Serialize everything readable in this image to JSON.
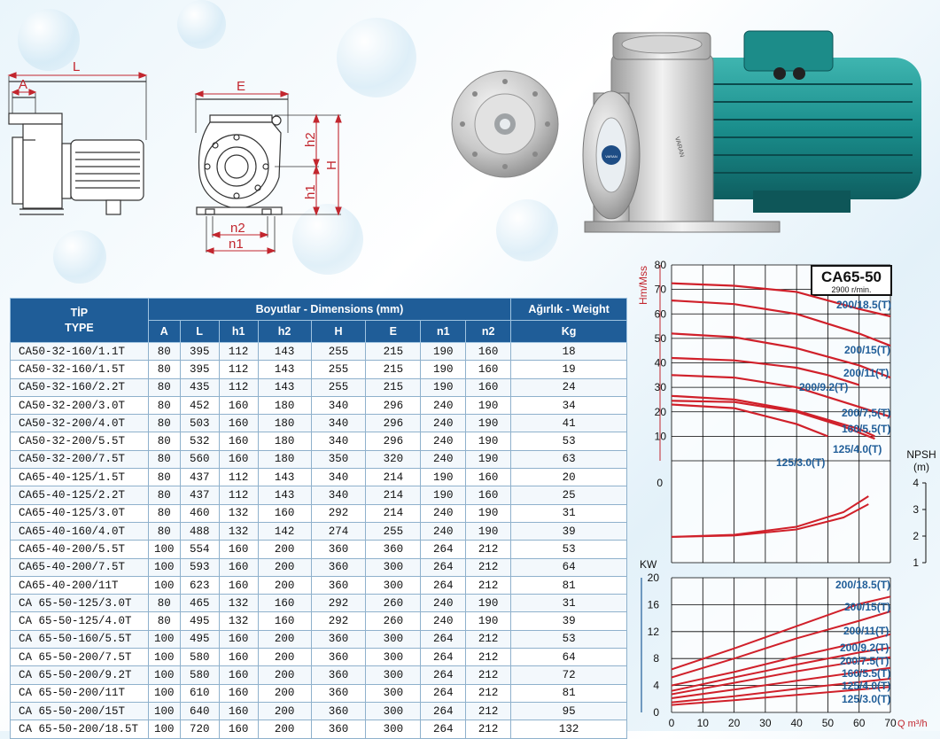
{
  "drawing_labels": {
    "L": "L",
    "A": "A",
    "E": "E",
    "h2": "h2",
    "H": "H",
    "h1": "h1",
    "n2": "n2",
    "n1": "n1"
  },
  "photo": {
    "brand_badge": "VARAN",
    "impeller_brand": "VARAN"
  },
  "table": {
    "header": {
      "type_tr": "TİP",
      "type_en": "TYPE",
      "dims": "Boyutlar - Dimensions (mm)",
      "weight": "Ağırlık - Weight",
      "cols": [
        "A",
        "L",
        "h1",
        "h2",
        "H",
        "E",
        "n1",
        "n2"
      ],
      "unit": "Kg"
    },
    "rows": [
      [
        "CA50-32-160/1.1T",
        "80",
        "395",
        "112",
        "143",
        "255",
        "215",
        "190",
        "160",
        "18"
      ],
      [
        "CA50-32-160/1.5T",
        "80",
        "395",
        "112",
        "143",
        "255",
        "215",
        "190",
        "160",
        "19"
      ],
      [
        "CA50-32-160/2.2T",
        "80",
        "435",
        "112",
        "143",
        "255",
        "215",
        "190",
        "160",
        "24"
      ],
      [
        "CA50-32-200/3.0T",
        "80",
        "452",
        "160",
        "180",
        "340",
        "296",
        "240",
        "190",
        "34"
      ],
      [
        "CA50-32-200/4.0T",
        "80",
        "503",
        "160",
        "180",
        "340",
        "296",
        "240",
        "190",
        "41"
      ],
      [
        "CA50-32-200/5.5T",
        "80",
        "532",
        "160",
        "180",
        "340",
        "296",
        "240",
        "190",
        "53"
      ],
      [
        "CA50-32-200/7.5T",
        "80",
        "560",
        "160",
        "180",
        "350",
        "320",
        "240",
        "190",
        "63"
      ],
      [
        "CA65-40-125/1.5T",
        "80",
        "437",
        "112",
        "143",
        "340",
        "214",
        "190",
        "160",
        "20"
      ],
      [
        "CA65-40-125/2.2T",
        "80",
        "437",
        "112",
        "143",
        "340",
        "214",
        "190",
        "160",
        "25"
      ],
      [
        "CA65-40-125/3.0T",
        "80",
        "460",
        "132",
        "160",
        "292",
        "214",
        "240",
        "190",
        "31"
      ],
      [
        "CA65-40-160/4.0T",
        "80",
        "488",
        "132",
        "142",
        "274",
        "255",
        "240",
        "190",
        "39"
      ],
      [
        "CA65-40-200/5.5T",
        "100",
        "554",
        "160",
        "200",
        "360",
        "360",
        "264",
        "212",
        "53"
      ],
      [
        "CA65-40-200/7.5T",
        "100",
        "593",
        "160",
        "200",
        "360",
        "300",
        "264",
        "212",
        "64"
      ],
      [
        "CA65-40-200/11T",
        "100",
        "623",
        "160",
        "200",
        "360",
        "300",
        "264",
        "212",
        "81"
      ],
      [
        "CA 65-50-125/3.0T",
        "80",
        "465",
        "132",
        "160",
        "292",
        "260",
        "240",
        "190",
        "31"
      ],
      [
        "CA 65-50-125/4.0T",
        "80",
        "495",
        "132",
        "160",
        "292",
        "260",
        "240",
        "190",
        "39"
      ],
      [
        "CA 65-50-160/5.5T",
        "100",
        "495",
        "160",
        "200",
        "360",
        "300",
        "264",
        "212",
        "53"
      ],
      [
        "CA 65-50-200/7.5T",
        "100",
        "580",
        "160",
        "200",
        "360",
        "300",
        "264",
        "212",
        "64"
      ],
      [
        "CA 65-50-200/9.2T",
        "100",
        "580",
        "160",
        "200",
        "360",
        "300",
        "264",
        "212",
        "72"
      ],
      [
        "CA 65-50-200/11T",
        "100",
        "610",
        "160",
        "200",
        "360",
        "300",
        "264",
        "212",
        "81"
      ],
      [
        "CA 65-50-200/15T",
        "100",
        "640",
        "160",
        "200",
        "360",
        "300",
        "264",
        "212",
        "95"
      ],
      [
        "CA 65-50-200/18.5T",
        "100",
        "720",
        "160",
        "200",
        "360",
        "300",
        "264",
        "212",
        "132"
      ]
    ]
  },
  "chart_data": {
    "type": "line",
    "title": "CA65-50",
    "subtitle": "2900 r/min.",
    "x_unit": "Q m³/h",
    "x": [
      0,
      10,
      20,
      30,
      40,
      50,
      60,
      70
    ],
    "head": {
      "ylabel": "Hm/Mss",
      "ylim": [
        0,
        80
      ],
      "yticks": [
        10,
        20,
        30,
        40,
        50,
        60,
        70,
        80
      ],
      "series": [
        {
          "name": "200/18.5(T)",
          "points": [
            [
              0,
              72.5
            ],
            [
              20,
              71.5
            ],
            [
              40,
              69
            ],
            [
              60,
              62
            ],
            [
              70,
              59
            ]
          ]
        },
        {
          "name": "200/15(T)",
          "points": [
            [
              0,
              65.5
            ],
            [
              20,
              64
            ],
            [
              40,
              60
            ],
            [
              60,
              52
            ],
            [
              70,
              47
            ]
          ]
        },
        {
          "name": "200/11(T)",
          "points": [
            [
              0,
              52
            ],
            [
              20,
              50.5
            ],
            [
              40,
              46
            ],
            [
              60,
              39
            ],
            [
              70,
              34
            ]
          ]
        },
        {
          "name": "200/9.2(T)",
          "points": [
            [
              0,
              42
            ],
            [
              20,
              41
            ],
            [
              40,
              38
            ],
            [
              50,
              35
            ],
            [
              60,
              31
            ]
          ]
        },
        {
          "name": "200/7,5(T)",
          "points": [
            [
              0,
              35
            ],
            [
              20,
              34
            ],
            [
              40,
              30
            ],
            [
              60,
              22
            ],
            [
              70,
              18
            ]
          ]
        },
        {
          "name": "160/5.5(T)",
          "points": [
            [
              0,
              26.5
            ],
            [
              20,
              25
            ],
            [
              40,
              20.5
            ],
            [
              60,
              13
            ],
            [
              65,
              10
            ]
          ]
        },
        {
          "name": "125/4.0(T)",
          "points": [
            [
              0,
              24.5
            ],
            [
              20,
              24
            ],
            [
              40,
              20
            ],
            [
              55,
              14
            ],
            [
              65,
              9
            ]
          ]
        },
        {
          "name": "125/3.0(T)",
          "points": [
            [
              0,
              23
            ],
            [
              20,
              21.5
            ],
            [
              40,
              15
            ],
            [
              50,
              10
            ]
          ]
        }
      ]
    },
    "npsh": {
      "ylabel": "NPSH (m)",
      "ylim": [
        1,
        4
      ],
      "yticks": [
        1,
        2,
        3,
        4
      ],
      "top_tick": "0",
      "series": [
        {
          "name": "NPSH upper",
          "points": [
            [
              0,
              1.97
            ],
            [
              20,
              2.05
            ],
            [
              40,
              2.35
            ],
            [
              55,
              2.9
            ],
            [
              63,
              3.5
            ]
          ]
        },
        {
          "name": "NPSH lower",
          "points": [
            [
              0,
              1.97
            ],
            [
              20,
              2.02
            ],
            [
              40,
              2.25
            ],
            [
              55,
              2.7
            ],
            [
              63,
              3.2
            ]
          ]
        }
      ]
    },
    "power": {
      "ylabel": "KW",
      "ylim": [
        0,
        20
      ],
      "yticks": [
        0,
        4,
        8,
        12,
        16,
        20
      ],
      "series": [
        {
          "name": "200/18.5(T)",
          "points": [
            [
              0,
              6.4
            ],
            [
              20,
              9.5
            ],
            [
              40,
              12.8
            ],
            [
              60,
              16.1
            ],
            [
              70,
              17.2
            ]
          ]
        },
        {
          "name": "200/15(T)",
          "points": [
            [
              0,
              5.2
            ],
            [
              20,
              8
            ],
            [
              40,
              11
            ],
            [
              60,
              13.6
            ],
            [
              70,
              15
            ]
          ]
        },
        {
          "name": "200/11(T)",
          "points": [
            [
              0,
              4
            ],
            [
              20,
              6
            ],
            [
              40,
              8.3
            ],
            [
              60,
              10.4
            ],
            [
              70,
              11.6
            ]
          ]
        },
        {
          "name": "200/9.2(T)",
          "points": [
            [
              0,
              3.2
            ],
            [
              20,
              5.2
            ],
            [
              40,
              7.1
            ],
            [
              60,
              8.9
            ],
            [
              70,
              9.6
            ]
          ]
        },
        {
          "name": "200/7.5(T)",
          "points": [
            [
              0,
              2.7
            ],
            [
              20,
              4.4
            ],
            [
              40,
              6.1
            ],
            [
              60,
              7.6
            ],
            [
              70,
              8.2
            ]
          ]
        },
        {
          "name": "160/5.5(T)",
          "points": [
            [
              0,
              2.1
            ],
            [
              20,
              3.4
            ],
            [
              40,
              4.7
            ],
            [
              60,
              6
            ],
            [
              70,
              6.6
            ]
          ]
        },
        {
          "name": "125/4.0(T)",
          "points": [
            [
              0,
              1.5
            ],
            [
              20,
              2.4
            ],
            [
              40,
              3.5
            ],
            [
              60,
              4.5
            ],
            [
              70,
              5
            ]
          ]
        },
        {
          "name": "125/3.0(T)",
          "points": [
            [
              0,
              1.1
            ],
            [
              20,
              1.8
            ],
            [
              40,
              2.6
            ],
            [
              60,
              3.4
            ],
            [
              70,
              3.8
            ]
          ]
        }
      ]
    }
  }
}
